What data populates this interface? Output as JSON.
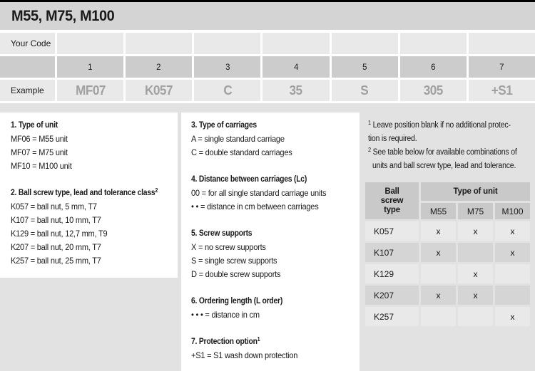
{
  "page_title": "M55, M75, M100",
  "colors": {
    "top_rule": "#000000",
    "title_bar_bg": "#d4d4d4",
    "cell_light": "#e9e9e9",
    "cell_dark": "#cccccc",
    "page_gray": "#e2e2e2",
    "example_text": "#a0a0a0",
    "body_text": "#1a1a1a"
  },
  "code_table": {
    "your_code_label": "Your Code",
    "example_label": "Example",
    "positions": [
      "1",
      "2",
      "3",
      "4",
      "5",
      "6",
      "7"
    ],
    "example_values": [
      "MF07",
      "K057",
      "C",
      "35",
      "S",
      "305",
      "+S1"
    ]
  },
  "sections": [
    {
      "heading": "1. Type of unit",
      "sup": "",
      "items": [
        "MF06 = M55 unit",
        "MF07 = M75 unit",
        "MF10 = M100 unit"
      ]
    },
    {
      "heading": "2. Ball screw type, lead and tolerance class",
      "sup": "2",
      "items": [
        "K057 = ball nut, 5 mm, T7",
        "K107 = ball nut, 10 mm, T7",
        "K129 = ball nut, 12,7 mm, T9",
        "K207 = ball nut, 20 mm, T7",
        "K257 = ball nut, 25 mm, T7"
      ]
    },
    {
      "heading": "3. Type of carriages",
      "sup": "",
      "items": [
        "A = single standard carriage",
        "C = double standard carriages"
      ]
    },
    {
      "heading": "4. Distance between carriages (Lc)",
      "sup": "",
      "items": [
        "00  = for all single standard carriage units",
        "• •  = distance in cm between carriages"
      ]
    },
    {
      "heading": "5. Screw supports",
      "sup": "",
      "items": [
        "X = no screw supports",
        "S = single screw supports",
        "D = double screw supports"
      ]
    },
    {
      "heading": "6. Ordering length (L order)",
      "sup": "",
      "items": [
        "• • • = distance in cm"
      ]
    },
    {
      "heading": "7. Protection option",
      "sup": "1",
      "items": [
        "+S1 = S1 wash down protection"
      ]
    }
  ],
  "footnotes": [
    {
      "sup": "1",
      "lines": [
        "Leave position blank if no additional protec-",
        "tion is required."
      ]
    },
    {
      "sup": "2",
      "lines": [
        "See table below for available combinations of",
        "units and ball screw type, lead and tolerance."
      ]
    }
  ],
  "compat_table": {
    "corner_lines": [
      "Ball",
      "screw",
      "type"
    ],
    "group_header": "Type of unit",
    "col_headers": [
      "M55",
      "M75",
      "M100"
    ],
    "rows": [
      {
        "type": "K057",
        "marks": [
          "x",
          "x",
          "x"
        ]
      },
      {
        "type": "K107",
        "marks": [
          "x",
          "",
          "x"
        ]
      },
      {
        "type": "K129",
        "marks": [
          "",
          "x",
          ""
        ]
      },
      {
        "type": "K207",
        "marks": [
          "x",
          "x",
          ""
        ]
      },
      {
        "type": "K257",
        "marks": [
          "",
          "",
          "x"
        ]
      }
    ]
  }
}
